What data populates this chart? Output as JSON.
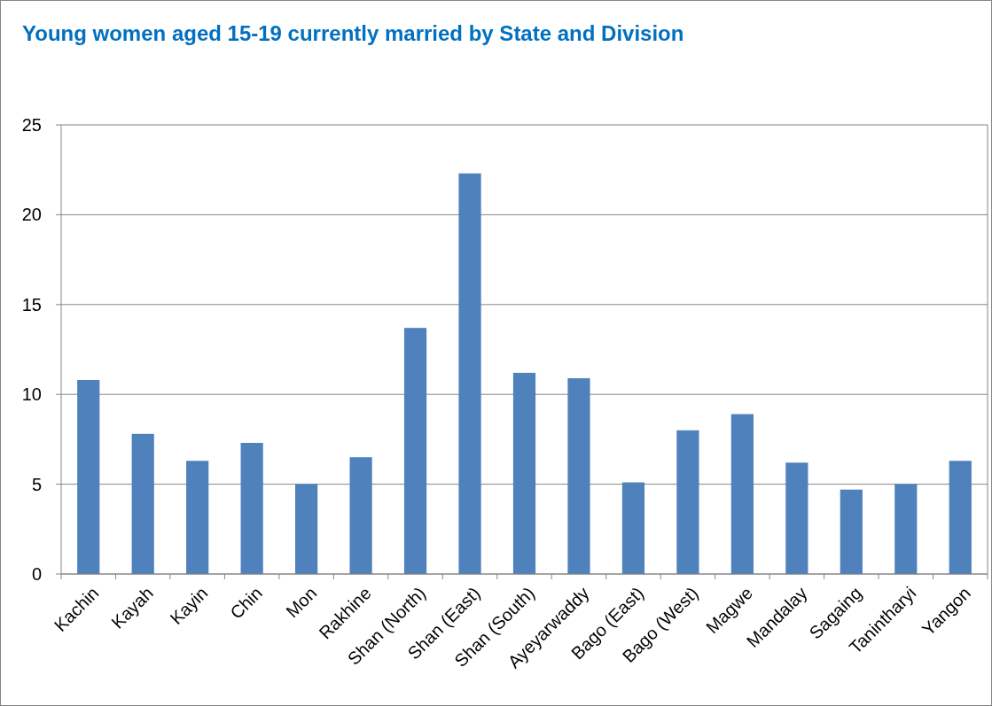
{
  "chart_data": {
    "type": "bar",
    "title": "Young women aged 15-19 currently married by State and Division",
    "categories": [
      "Kachin",
      "Kayah",
      "Kayin",
      "Chin",
      "Mon",
      "Rakhine",
      "Shan (North)",
      "Shan (East)",
      "Shan (South)",
      "Ayeyarwaddy",
      "Bago (East)",
      "Bago (West)",
      "Magwe",
      "Mandalay",
      "Sagaing",
      "Tanintharyi",
      "Yangon"
    ],
    "values": [
      10.8,
      7.8,
      6.3,
      7.3,
      5.0,
      6.5,
      13.7,
      22.3,
      11.2,
      10.9,
      5.1,
      8.0,
      8.9,
      6.2,
      4.7,
      5.0,
      6.3
    ],
    "color": "#4f81bd",
    "ylim": [
      0,
      25
    ],
    "yticks": [
      0,
      5,
      10,
      15,
      20,
      25
    ],
    "grid": "y"
  }
}
